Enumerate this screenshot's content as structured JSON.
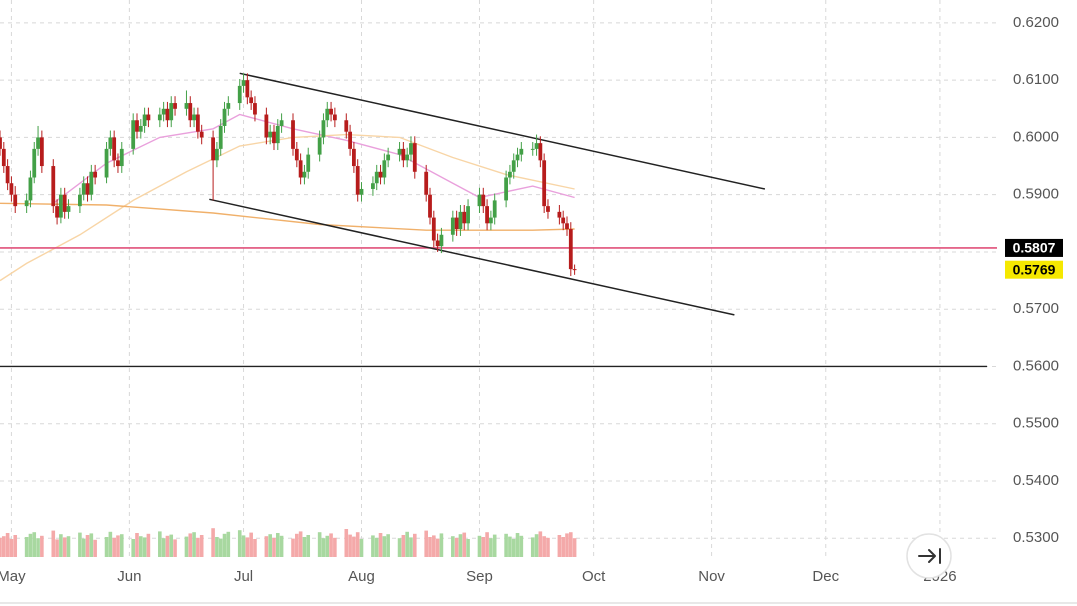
{
  "chart_data": {
    "type": "candlestick",
    "x": [
      118,
      119,
      120,
      121,
      122,
      125,
      126,
      127,
      128,
      129,
      132,
      133,
      134,
      135,
      136,
      139,
      140,
      141,
      142,
      143,
      146,
      147,
      148,
      149,
      150,
      153,
      154,
      155,
      156,
      157,
      160,
      161,
      162,
      163,
      164,
      167,
      168,
      169,
      170,
      171,
      174,
      175,
      176,
      177,
      178,
      181,
      182,
      183,
      184,
      185,
      188,
      189,
      190,
      191,
      192,
      195,
      196,
      197,
      198,
      199,
      202,
      203,
      204,
      205,
      206,
      209,
      210,
      211,
      212,
      213,
      216,
      217,
      218,
      219,
      220,
      223,
      224,
      225,
      226,
      227,
      230,
      231,
      232,
      233,
      234,
      237,
      238,
      239,
      240,
      241,
      244,
      245,
      246,
      247,
      248,
      251,
      252,
      253,
      254,
      255,
      258,
      259,
      260,
      261,
      262,
      265,
      266,
      267,
      268,
      269
    ],
    "open": [
      0.6,
      0.598,
      0.595,
      0.592,
      0.59,
      0.588,
      0.589,
      0.593,
      0.598,
      0.6,
      0.595,
      0.588,
      0.586,
      0.59,
      0.587,
      0.588,
      0.59,
      0.592,
      0.59,
      0.594,
      0.593,
      0.598,
      0.6,
      0.596,
      0.595,
      0.598,
      0.603,
      0.601,
      0.602,
      0.604,
      0.603,
      0.604,
      0.605,
      0.603,
      0.606,
      0.605,
      0.606,
      0.603,
      0.604,
      0.601,
      0.6,
      0.596,
      0.598,
      0.602,
      0.605,
      0.606,
      0.609,
      0.61,
      0.607,
      0.606,
      0.604,
      0.6,
      0.601,
      0.599,
      0.602,
      0.603,
      0.598,
      0.596,
      0.593,
      0.594,
      0.597,
      0.6,
      0.603,
      0.605,
      0.604,
      0.603,
      0.601,
      0.598,
      0.595,
      0.59,
      0.591,
      0.592,
      0.594,
      0.593,
      0.596,
      0.597,
      0.598,
      0.596,
      0.597,
      0.599,
      0.594,
      0.59,
      0.586,
      0.582,
      0.581,
      0.583,
      0.586,
      0.584,
      0.587,
      0.585,
      0.588,
      0.59,
      0.588,
      0.585,
      0.586,
      0.589,
      0.593,
      0.594,
      0.596,
      0.597,
      0.598,
      0.598,
      0.599,
      0.596,
      0.588,
      0.587,
      0.586,
      0.585,
      0.584,
      0.577
    ],
    "high": [
      0.6012,
      0.5992,
      0.5962,
      0.5932,
      0.5915,
      0.5902,
      0.5942,
      0.5992,
      0.602,
      0.6012,
      0.5962,
      0.5892,
      0.5912,
      0.5912,
      0.5892,
      0.5912,
      0.5932,
      0.5932,
      0.5952,
      0.5952,
      0.5992,
      0.6012,
      0.6012,
      0.5972,
      0.5992,
      0.6042,
      0.6042,
      0.6032,
      0.6052,
      0.6052,
      0.6052,
      0.6062,
      0.6062,
      0.6072,
      0.6072,
      0.6082,
      0.6072,
      0.6052,
      0.6052,
      0.6022,
      0.6012,
      0.5992,
      0.6032,
      0.6062,
      0.6072,
      0.6102,
      0.6112,
      0.6112,
      0.6082,
      0.6072,
      0.6052,
      0.6022,
      0.6022,
      0.6032,
      0.6042,
      0.6042,
      0.5992,
      0.5972,
      0.5952,
      0.5982,
      0.6012,
      0.6042,
      0.6062,
      0.6062,
      0.6052,
      0.6042,
      0.6022,
      0.5992,
      0.5962,
      0.5922,
      0.5932,
      0.5952,
      0.5952,
      0.5972,
      0.5982,
      0.5992,
      0.5992,
      0.5982,
      0.6002,
      0.6002,
      0.5952,
      0.5912,
      0.5872,
      0.5832,
      0.5842,
      0.5872,
      0.5872,
      0.5882,
      0.5882,
      0.5892,
      0.5912,
      0.5912,
      0.5892,
      0.5872,
      0.5902,
      0.5942,
      0.5952,
      0.5972,
      0.5982,
      0.5992,
      0.5992,
      0.6005,
      0.6002,
      0.5972,
      0.5892,
      0.5882,
      0.5872,
      0.5862,
      0.5852,
      0.5778
    ],
    "low": [
      0.5968,
      0.5938,
      0.5908,
      0.5888,
      0.5868,
      0.5868,
      0.5878,
      0.592,
      0.5968,
      0.5938,
      0.5868,
      0.5848,
      0.585,
      0.5858,
      0.5858,
      0.5868,
      0.589,
      0.5888,
      0.589,
      0.5918,
      0.592,
      0.5968,
      0.5948,
      0.5938,
      0.5938,
      0.597,
      0.5998,
      0.5998,
      0.6008,
      0.6018,
      0.6018,
      0.6028,
      0.6018,
      0.6018,
      0.6038,
      0.6038,
      0.6018,
      0.6018,
      0.5998,
      0.5988,
      0.589,
      0.5948,
      0.5968,
      0.6008,
      0.6038,
      0.6048,
      0.6078,
      0.6058,
      0.6048,
      0.6028,
      0.5988,
      0.5988,
      0.5978,
      0.5978,
      0.6008,
      0.5968,
      0.5948,
      0.5918,
      0.5918,
      0.5928,
      0.5958,
      0.5988,
      0.6018,
      0.6028,
      0.6018,
      0.5998,
      0.5968,
      0.5938,
      0.5888,
      0.5888,
      0.5898,
      0.5908,
      0.5918,
      0.5918,
      0.5948,
      0.5958,
      0.5948,
      0.5948,
      0.5958,
      0.5928,
      0.5888,
      0.5848,
      0.5808,
      0.58,
      0.5798,
      0.5818,
      0.5828,
      0.5828,
      0.5838,
      0.5838,
      0.5868,
      0.5868,
      0.5838,
      0.5838,
      0.5848,
      0.5878,
      0.5918,
      0.5928,
      0.5948,
      0.5958,
      0.5968,
      0.5968,
      0.5948,
      0.5868,
      0.5858,
      0.5848,
      0.5838,
      0.5828,
      0.5758,
      0.576
    ],
    "close": [
      0.598,
      0.595,
      0.592,
      0.59,
      0.588,
      0.589,
      0.593,
      0.598,
      0.6,
      0.595,
      0.588,
      0.586,
      0.59,
      0.587,
      0.588,
      0.59,
      0.592,
      0.59,
      0.594,
      0.593,
      0.598,
      0.6,
      0.596,
      0.595,
      0.598,
      0.603,
      0.601,
      0.602,
      0.604,
      0.603,
      0.604,
      0.605,
      0.603,
      0.606,
      0.605,
      0.606,
      0.603,
      0.604,
      0.601,
      0.6,
      0.596,
      0.598,
      0.602,
      0.605,
      0.606,
      0.609,
      0.61,
      0.607,
      0.606,
      0.604,
      0.6,
      0.601,
      0.599,
      0.602,
      0.603,
      0.598,
      0.596,
      0.593,
      0.594,
      0.597,
      0.6,
      0.603,
      0.605,
      0.604,
      0.603,
      0.601,
      0.598,
      0.595,
      0.59,
      0.591,
      0.592,
      0.594,
      0.593,
      0.596,
      0.597,
      0.598,
      0.596,
      0.597,
      0.599,
      0.594,
      0.59,
      0.586,
      0.582,
      0.581,
      0.583,
      0.586,
      0.584,
      0.587,
      0.585,
      0.588,
      0.59,
      0.588,
      0.585,
      0.586,
      0.589,
      0.593,
      0.594,
      0.596,
      0.597,
      0.598,
      0.598,
      0.599,
      0.596,
      0.588,
      0.587,
      0.586,
      0.585,
      0.584,
      0.577,
      0.5769
    ],
    "up_color": "#43a047",
    "down_color": "#b71c1c",
    "volume": {
      "values": [
        48,
        52,
        60,
        45,
        55,
        50,
        58,
        62,
        47,
        53,
        66,
        44,
        57,
        49,
        52,
        61,
        46,
        55,
        59,
        43,
        50,
        63,
        48,
        54,
        57,
        45,
        60,
        52,
        49,
        58,
        64,
        47,
        53,
        56,
        44,
        51,
        59,
        62,
        48,
        55,
        72,
        50,
        46,
        58,
        63,
        67,
        54,
        49,
        61,
        45,
        52,
        57,
        48,
        60,
        53,
        46,
        58,
        64,
        50,
        55,
        62,
        47,
        53,
        59,
        48,
        70,
        56,
        51,
        62,
        45,
        54,
        48,
        60,
        52,
        57,
        47,
        55,
        63,
        49,
        58,
        66,
        50,
        54,
        46,
        59,
        52,
        48,
        57,
        61,
        45,
        53,
        50,
        62,
        47,
        56,
        58,
        51,
        45,
        60,
        53,
        49,
        57,
        64,
        52,
        48,
        55,
        50,
        59,
        62,
        47
      ],
      "ylim": [
        0,
        100
      ],
      "up_color": "#a8d8a0",
      "down_color": "#f4a9a9"
    },
    "lines": [
      {
        "color": "#e9a0dc",
        "x": [
          132,
          146,
          160,
          174,
          181,
          195,
          209,
          223,
          237,
          244,
          258,
          269
        ],
        "values": [
          0.5885,
          0.5955,
          0.6,
          0.6015,
          0.604,
          0.6015,
          0.5995,
          0.597,
          0.592,
          0.5895,
          0.5915,
          0.5895
        ]
      },
      {
        "color": "#f8d5a6",
        "x": [
          118,
          125,
          139,
          153,
          167,
          181,
          195,
          209,
          223,
          237,
          251,
          269
        ],
        "values": [
          0.575,
          0.578,
          0.583,
          0.589,
          0.594,
          0.5985,
          0.6,
          0.6005,
          0.6,
          0.5965,
          0.5935,
          0.591
        ]
      },
      {
        "color": "#f0b06a",
        "x": [
          118,
          146,
          174,
          202,
          230,
          258,
          269
        ],
        "values": [
          0.5885,
          0.5882,
          0.5868,
          0.5848,
          0.5838,
          0.5838,
          0.584
        ]
      }
    ],
    "trendlines": [
      {
        "color": "#222222",
        "x": [
          181,
          319
        ],
        "values": [
          0.6112,
          0.591
        ]
      },
      {
        "color": "#222222",
        "x": [
          173,
          311
        ],
        "values": [
          0.5892,
          0.569
        ]
      }
    ],
    "hlines": [
      {
        "value": 0.5807,
        "color": "#e0507a",
        "label": "0.5807",
        "label_bg": "#000000",
        "label_color": "#ffffff"
      },
      {
        "value": 0.56,
        "color": "#222222"
      }
    ],
    "last_price": {
      "value": 0.5769,
      "label": "0.5769",
      "bg": "#f5e800",
      "color": "#000000"
    },
    "xlim": [
      118,
      380
    ],
    "ylim": [
      0.5262,
      0.624
    ],
    "xticks": [
      {
        "value": 121,
        "label": "May"
      },
      {
        "value": 152,
        "label": "Jun"
      },
      {
        "value": 182,
        "label": "Jul"
      },
      {
        "value": 213,
        "label": "Aug"
      },
      {
        "value": 244,
        "label": "Sep"
      },
      {
        "value": 274,
        "label": "Oct"
      },
      {
        "value": 305,
        "label": "Nov"
      },
      {
        "value": 335,
        "label": "Dec"
      },
      {
        "value": 365,
        "label": "2026"
      }
    ],
    "yticks": [
      {
        "value": 0.53,
        "label": "0.5300"
      },
      {
        "value": 0.54,
        "label": "0.5400"
      },
      {
        "value": 0.55,
        "label": "0.5500"
      },
      {
        "value": 0.56,
        "label": "0.5600"
      },
      {
        "value": 0.57,
        "label": "0.5700"
      },
      {
        "value": 0.58,
        "label": "0.5800"
      },
      {
        "value": 0.59,
        "label": "0.5900"
      },
      {
        "value": 0.6,
        "label": "0.6000"
      },
      {
        "value": 0.61,
        "label": "0.6100"
      },
      {
        "value": 0.62,
        "label": "0.6200"
      }
    ],
    "grid": true
  }
}
